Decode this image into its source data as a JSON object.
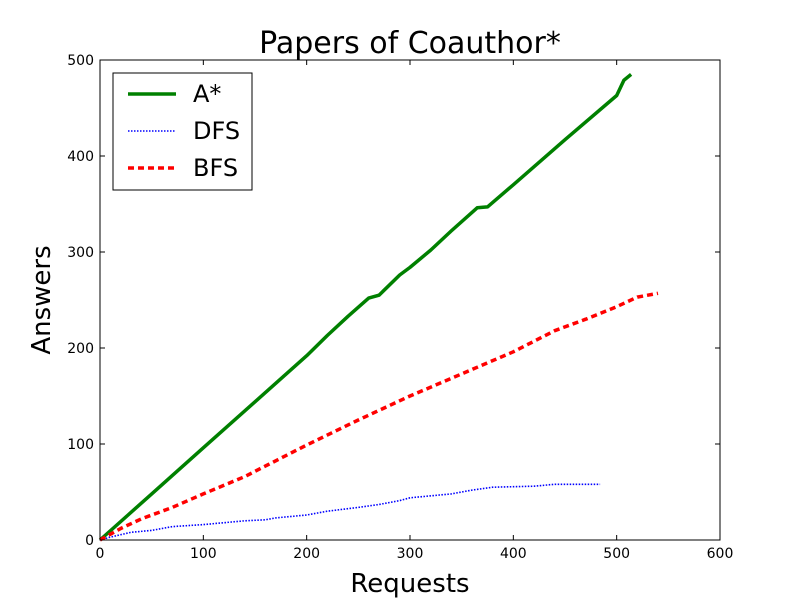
{
  "chart_data": {
    "type": "line",
    "title": "Papers of Coauthor*",
    "xlabel": "Requests",
    "ylabel": "Answers",
    "xlim": [
      0,
      600
    ],
    "ylim": [
      0,
      500
    ],
    "xticks": [
      0,
      100,
      200,
      300,
      400,
      500,
      600
    ],
    "yticks": [
      0,
      100,
      200,
      300,
      400,
      500
    ],
    "grid": false,
    "legend_position": "top-left",
    "series": [
      {
        "name": "A*",
        "color": "#008000",
        "style": "solid",
        "points": [
          [
            0,
            0
          ],
          [
            50,
            48
          ],
          [
            100,
            96
          ],
          [
            150,
            144
          ],
          [
            200,
            192
          ],
          [
            220,
            213
          ],
          [
            240,
            233
          ],
          [
            260,
            252
          ],
          [
            270,
            255
          ],
          [
            290,
            276
          ],
          [
            300,
            284
          ],
          [
            320,
            302
          ],
          [
            340,
            322
          ],
          [
            365,
            346
          ],
          [
            375,
            347
          ],
          [
            400,
            370
          ],
          [
            450,
            417
          ],
          [
            500,
            463
          ],
          [
            507,
            479
          ],
          [
            514,
            485
          ]
        ]
      },
      {
        "name": "DFS",
        "color": "#0000ff",
        "style": "dotted",
        "points": [
          [
            0,
            0
          ],
          [
            10,
            3
          ],
          [
            30,
            8
          ],
          [
            50,
            10
          ],
          [
            70,
            14
          ],
          [
            100,
            16
          ],
          [
            120,
            18
          ],
          [
            140,
            20
          ],
          [
            160,
            21
          ],
          [
            170,
            23
          ],
          [
            200,
            26
          ],
          [
            220,
            30
          ],
          [
            250,
            34
          ],
          [
            270,
            37
          ],
          [
            290,
            41
          ],
          [
            300,
            44
          ],
          [
            340,
            48
          ],
          [
            360,
            52
          ],
          [
            380,
            55
          ],
          [
            420,
            56
          ],
          [
            440,
            58
          ],
          [
            484,
            58
          ]
        ]
      },
      {
        "name": "BFS",
        "color": "#ff0000",
        "style": "dashed",
        "points": [
          [
            0,
            0
          ],
          [
            20,
            12
          ],
          [
            40,
            22
          ],
          [
            70,
            34
          ],
          [
            100,
            48
          ],
          [
            140,
            66
          ],
          [
            160,
            77
          ],
          [
            200,
            99
          ],
          [
            250,
            125
          ],
          [
            300,
            150
          ],
          [
            350,
            173
          ],
          [
            400,
            196
          ],
          [
            440,
            218
          ],
          [
            470,
            230
          ],
          [
            500,
            243
          ],
          [
            510,
            248
          ],
          [
            520,
            253
          ],
          [
            540,
            257
          ]
        ]
      }
    ]
  }
}
